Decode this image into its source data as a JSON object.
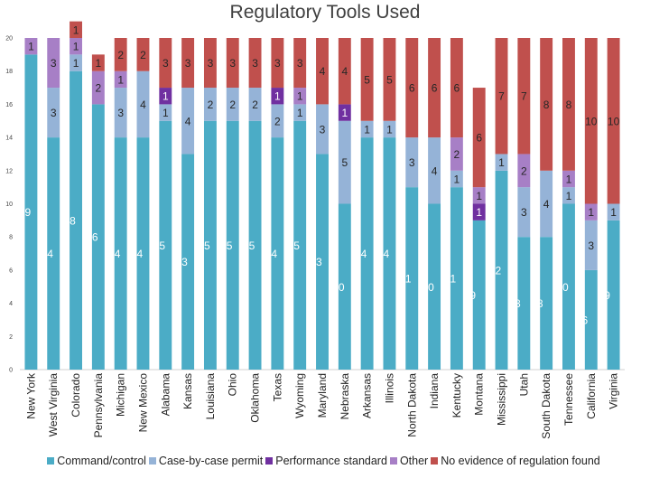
{
  "chart_data": {
    "type": "bar",
    "stacked": true,
    "title": "Regulatory Tools Used",
    "xlabel": "",
    "ylabel": "",
    "ylim": [
      0,
      20
    ],
    "yticks": [
      0,
      2,
      4,
      6,
      8,
      10,
      12,
      14,
      16,
      18,
      20
    ],
    "grid": false,
    "legend": "bottom",
    "categories": [
      "New York",
      "West Virginia",
      "Colorado",
      "Pennsylvania",
      "Michigan",
      "New Mexico",
      "Alabama",
      "Kansas",
      "Louisiana",
      "Ohio",
      "Oklahoma",
      "Texas",
      "Wyoming",
      "Maryland",
      "Nebraska",
      "Arkansas",
      "Illinois",
      "North Dakota",
      "Indiana",
      "Kentucky",
      "Montana",
      "Mississippi",
      "Utah",
      "South Dakota",
      "Tennessee",
      "California",
      "Virginia"
    ],
    "series": [
      {
        "name": "Command/control",
        "color": "#4bacc6",
        "values": [
          19,
          14,
          18,
          16,
          14,
          14,
          15,
          13,
          15,
          15,
          15,
          14,
          15,
          13,
          10,
          14,
          14,
          11,
          10,
          11,
          9,
          12,
          8,
          8,
          10,
          6,
          9
        ]
      },
      {
        "name": "Case-by-case permit",
        "color": "#95b3d7",
        "values": [
          0,
          3,
          1,
          0,
          3,
          4,
          1,
          4,
          2,
          2,
          2,
          2,
          1,
          3,
          5,
          1,
          1,
          3,
          4,
          1,
          0,
          1,
          3,
          4,
          1,
          3,
          1
        ]
      },
      {
        "name": "Performance standard",
        "color": "#7030a0",
        "values": [
          0,
          0,
          0,
          0,
          0,
          0,
          1,
          0,
          0,
          0,
          0,
          1,
          0,
          0,
          1,
          0,
          0,
          0,
          0,
          0,
          1,
          0,
          0,
          0,
          0,
          0,
          0
        ]
      },
      {
        "name": "Other",
        "color": "#a77fc6",
        "values": [
          1,
          3,
          1,
          2,
          1,
          0,
          0,
          0,
          0,
          0,
          0,
          0,
          1,
          0,
          0,
          0,
          0,
          0,
          0,
          2,
          1,
          0,
          2,
          0,
          1,
          1,
          0
        ]
      },
      {
        "name": "No evidence of regulation found",
        "color": "#c0504d",
        "values": [
          0,
          0,
          1,
          1,
          2,
          2,
          3,
          3,
          3,
          3,
          3,
          3,
          3,
          4,
          4,
          5,
          5,
          6,
          6,
          6,
          6,
          7,
          7,
          8,
          8,
          10,
          10
        ]
      }
    ]
  }
}
